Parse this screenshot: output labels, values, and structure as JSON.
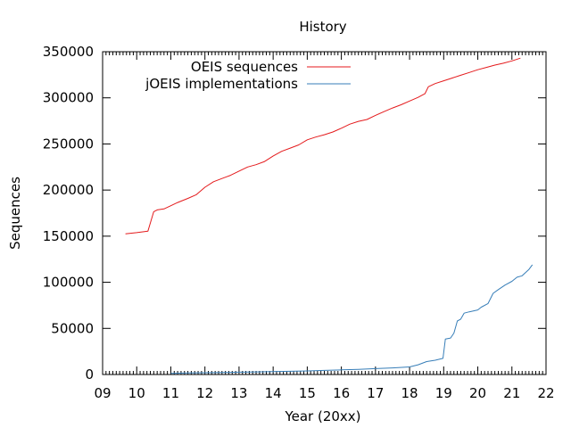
{
  "chart_data": {
    "type": "line",
    "title": "History",
    "xlabel": "Year (20xx)",
    "ylabel": "Sequences",
    "xlim": [
      9,
      22
    ],
    "ylim": [
      0,
      350000
    ],
    "x_ticks": [
      9,
      10,
      11,
      12,
      13,
      14,
      15,
      16,
      17,
      18,
      19,
      20,
      21,
      22
    ],
    "x_tick_labels": [
      "09",
      "10",
      "11",
      "12",
      "13",
      "14",
      "15",
      "16",
      "17",
      "18",
      "19",
      "20",
      "21",
      "22"
    ],
    "y_ticks": [
      0,
      50000,
      100000,
      150000,
      200000,
      250000,
      300000,
      350000
    ],
    "y_tick_labels": [
      "0",
      "50000",
      "100000",
      "150000",
      "200000",
      "250000",
      "300000",
      "350000"
    ],
    "grid": false,
    "legend_position": "top-left",
    "series": [
      {
        "name": "OEIS sequences",
        "color": "#e41a1c",
        "points": [
          [
            9.67,
            152500
          ],
          [
            10.0,
            153800
          ],
          [
            10.33,
            155500
          ],
          [
            10.5,
            176500
          ],
          [
            10.6,
            178500
          ],
          [
            10.8,
            179500
          ],
          [
            11.0,
            183000
          ],
          [
            11.2,
            186500
          ],
          [
            11.5,
            191000
          ],
          [
            11.75,
            195000
          ],
          [
            12.0,
            203000
          ],
          [
            12.25,
            209000
          ],
          [
            12.5,
            212500
          ],
          [
            12.75,
            216000
          ],
          [
            13.0,
            220500
          ],
          [
            13.25,
            225000
          ],
          [
            13.5,
            227500
          ],
          [
            13.75,
            231000
          ],
          [
            14.0,
            237000
          ],
          [
            14.25,
            242000
          ],
          [
            14.5,
            245500
          ],
          [
            14.75,
            249000
          ],
          [
            15.0,
            254500
          ],
          [
            15.25,
            257500
          ],
          [
            15.5,
            260000
          ],
          [
            15.75,
            263000
          ],
          [
            16.0,
            267000
          ],
          [
            16.25,
            271500
          ],
          [
            16.5,
            274500
          ],
          [
            16.75,
            276500
          ],
          [
            17.0,
            281000
          ],
          [
            17.25,
            285000
          ],
          [
            17.5,
            289000
          ],
          [
            17.75,
            292500
          ],
          [
            18.0,
            296500
          ],
          [
            18.25,
            300500
          ],
          [
            18.45,
            304500
          ],
          [
            18.55,
            312000
          ],
          [
            18.75,
            315500
          ],
          [
            19.0,
            318500
          ],
          [
            19.25,
            321500
          ],
          [
            19.5,
            324500
          ],
          [
            19.75,
            327500
          ],
          [
            20.0,
            330500
          ],
          [
            20.25,
            333000
          ],
          [
            20.5,
            335500
          ],
          [
            20.75,
            337500
          ],
          [
            21.0,
            340000
          ],
          [
            21.25,
            343000
          ]
        ]
      },
      {
        "name": "jOEIS implementations",
        "color": "#377eb8",
        "points": [
          [
            11.0,
            1200
          ],
          [
            11.5,
            1600
          ],
          [
            12.0,
            1900
          ],
          [
            12.5,
            2100
          ],
          [
            13.0,
            2500
          ],
          [
            13.5,
            2800
          ],
          [
            14.0,
            3100
          ],
          [
            14.5,
            3500
          ],
          [
            15.0,
            3900
          ],
          [
            15.5,
            4400
          ],
          [
            16.0,
            5000
          ],
          [
            16.5,
            5600
          ],
          [
            17.0,
            6400
          ],
          [
            17.5,
            7200
          ],
          [
            18.0,
            8200
          ],
          [
            18.25,
            10500
          ],
          [
            18.5,
            14000
          ],
          [
            18.75,
            15500
          ],
          [
            18.98,
            17500
          ],
          [
            19.05,
            38500
          ],
          [
            19.2,
            39500
          ],
          [
            19.3,
            45000
          ],
          [
            19.4,
            58000
          ],
          [
            19.5,
            60000
          ],
          [
            19.6,
            66500
          ],
          [
            19.75,
            68000
          ],
          [
            20.0,
            70000
          ],
          [
            20.1,
            73000
          ],
          [
            20.3,
            77000
          ],
          [
            20.45,
            88000
          ],
          [
            20.6,
            92000
          ],
          [
            20.8,
            97000
          ],
          [
            21.0,
            101000
          ],
          [
            21.15,
            105500
          ],
          [
            21.3,
            107000
          ],
          [
            21.5,
            114000
          ],
          [
            21.6,
            119000
          ]
        ]
      }
    ]
  }
}
